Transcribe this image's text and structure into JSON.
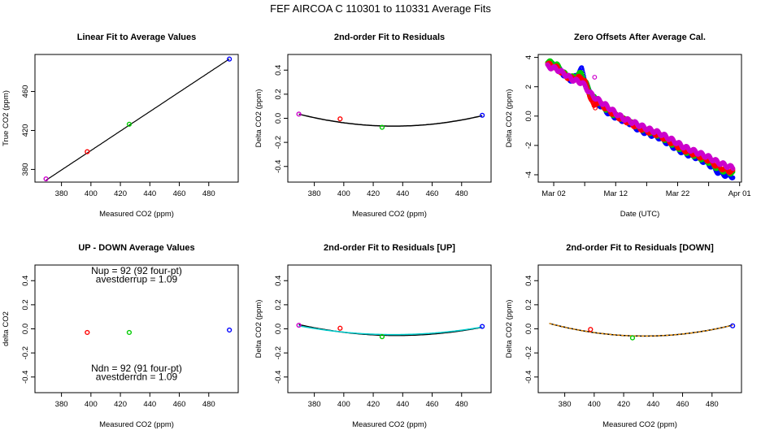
{
  "figure": {
    "title": "FEF   AIRCOA C   110301 to 110331   Average Fits"
  },
  "chart_data": [
    {
      "id": "p1",
      "type": "scatter",
      "title": "Linear Fit to Average Values",
      "xlabel": "Measured CO2 (ppm)",
      "ylabel": "True CO2 (ppm)",
      "xlim": [
        362,
        500
      ],
      "ylim": [
        367,
        498
      ],
      "xticks": [
        380,
        400,
        420,
        440,
        460,
        480
      ],
      "yticks": [
        380,
        420,
        460
      ],
      "points": [
        {
          "x": 369.5,
          "y": 370.3,
          "color": "#cc00cc"
        },
        {
          "x": 397.5,
          "y": 398.2,
          "color": "#ff0000"
        },
        {
          "x": 426.0,
          "y": 426.4,
          "color": "#00cc00"
        },
        {
          "x": 494.0,
          "y": 493.3,
          "color": "#0000ff"
        }
      ],
      "lines": [
        {
          "kind": "poly",
          "coef": [
            -0.6,
            1.0
          ],
          "xrange": [
            369.5,
            494
          ],
          "color": "#000000",
          "width": 1.2
        }
      ]
    },
    {
      "id": "p2",
      "type": "scatter",
      "title": "2nd-order Fit to Residuals",
      "xlabel": "Measured CO2 (ppm)",
      "ylabel": "Delta CO2 (ppm)",
      "xlim": [
        362,
        500
      ],
      "ylim": [
        -0.53,
        0.53
      ],
      "xticks": [
        380,
        400,
        420,
        440,
        460,
        480
      ],
      "yticks": [
        -0.4,
        -0.2,
        0.0,
        0.2,
        0.4
      ],
      "points": [
        {
          "x": 369.5,
          "y": 0.035,
          "color": "#cc00cc"
        },
        {
          "x": 397.5,
          "y": -0.005,
          "color": "#ff0000"
        },
        {
          "x": 426.0,
          "y": -0.075,
          "color": "#00cc00"
        },
        {
          "x": 494.0,
          "y": 0.025,
          "color": "#0000ff"
        }
      ],
      "lines": [
        {
          "kind": "parabola",
          "vertex_x": 434.0,
          "vertex_y": -0.065,
          "through_x": 369.5,
          "through_y": 0.035,
          "xrange": [
            369.5,
            494
          ],
          "color": "#000000",
          "width": 1.5
        }
      ]
    },
    {
      "id": "p3",
      "type": "scatter",
      "title": "Zero Offsets After Average Cal.",
      "xlabel": "Date (UTC)",
      "ylabel": "Delta CO2 (ppm)",
      "xlim": [
        -1.5,
        31.3
      ],
      "ylim": [
        -4.5,
        4.2
      ],
      "xticks": [
        1,
        6,
        11,
        16,
        21,
        26,
        31
      ],
      "xticklabels": [
        "Mar 02",
        "",
        "Mar 12",
        "",
        "Mar 22",
        "",
        "Apr 01"
      ],
      "yticks": [
        -4,
        -2,
        0,
        2,
        4
      ],
      "series": [
        {
          "name": "blue",
          "color": "#0000ff",
          "offset": -0.06,
          "points": [
            [
              0.0,
              3.7
            ],
            [
              1.5,
              3.45
            ],
            [
              3.0,
              2.7
            ],
            [
              4.0,
              2.5
            ],
            [
              5.0,
              3.05
            ],
            [
              5.5,
              3.25
            ],
            [
              6.0,
              2.6
            ],
            [
              7.0,
              1.4
            ],
            [
              8.0,
              1.0
            ],
            [
              10.0,
              0.2
            ],
            [
              11.0,
              0.0
            ],
            [
              12.0,
              -0.2
            ],
            [
              13.0,
              -0.35
            ],
            [
              14.5,
              -0.8
            ],
            [
              16.0,
              -1.1
            ],
            [
              18.0,
              -1.4
            ],
            [
              20.0,
              -1.95
            ],
            [
              22.0,
              -2.45
            ],
            [
              24.0,
              -2.75
            ],
            [
              26.0,
              -3.2
            ],
            [
              27.5,
              -3.75
            ],
            [
              29.0,
              -4.0
            ],
            [
              30.0,
              -4.05
            ]
          ]
        },
        {
          "name": "green",
          "color": "#00cc00",
          "offset": -0.02,
          "points": [
            [
              0.0,
              3.75
            ],
            [
              1.5,
              3.5
            ],
            [
              3.0,
              2.8
            ],
            [
              4.0,
              2.65
            ],
            [
              5.0,
              2.85
            ],
            [
              5.5,
              2.95
            ],
            [
              6.0,
              2.5
            ],
            [
              7.0,
              1.5
            ],
            [
              8.0,
              1.05
            ],
            [
              10.0,
              0.3
            ],
            [
              11.0,
              0.05
            ],
            [
              12.0,
              -0.15
            ],
            [
              13.0,
              -0.35
            ],
            [
              14.5,
              -0.7
            ],
            [
              16.0,
              -1.0
            ],
            [
              18.0,
              -1.3
            ],
            [
              20.0,
              -1.85
            ],
            [
              22.0,
              -2.35
            ],
            [
              24.0,
              -2.7
            ],
            [
              26.0,
              -3.1
            ],
            [
              27.5,
              -3.55
            ],
            [
              29.0,
              -3.8
            ],
            [
              30.0,
              -3.85
            ]
          ]
        },
        {
          "name": "red",
          "color": "#ff0000",
          "offset": 0.0,
          "points": [
            [
              0.0,
              3.55
            ],
            [
              1.5,
              3.3
            ],
            [
              3.0,
              2.7
            ],
            [
              4.0,
              2.55
            ],
            [
              5.0,
              2.6
            ],
            [
              5.5,
              2.65
            ],
            [
              6.0,
              2.4
            ],
            [
              7.0,
              1.2
            ],
            [
              7.5,
              0.6
            ],
            [
              8.0,
              1.0
            ],
            [
              10.0,
              0.35
            ],
            [
              11.0,
              0.05
            ],
            [
              12.0,
              -0.2
            ],
            [
              13.0,
              -0.4
            ],
            [
              14.5,
              -0.75
            ],
            [
              16.0,
              -1.0
            ],
            [
              18.0,
              -1.3
            ],
            [
              20.0,
              -1.8
            ],
            [
              22.0,
              -2.3
            ],
            [
              24.0,
              -2.65
            ],
            [
              26.0,
              -3.0
            ],
            [
              27.5,
              -3.45
            ],
            [
              29.0,
              -3.7
            ],
            [
              30.0,
              -3.8
            ]
          ]
        },
        {
          "name": "magenta",
          "color": "#cc00cc",
          "offset": 0.05,
          "points": [
            [
              0.0,
              3.35
            ],
            [
              1.5,
              3.15
            ],
            [
              3.0,
              2.75
            ],
            [
              4.0,
              2.45
            ],
            [
              5.0,
              2.3
            ],
            [
              5.5,
              2.25
            ],
            [
              6.0,
              2.0
            ],
            [
              7.0,
              1.45
            ],
            [
              8.0,
              1.1
            ],
            [
              10.0,
              0.5
            ],
            [
              11.0,
              0.15
            ],
            [
              12.0,
              -0.15
            ],
            [
              13.0,
              -0.35
            ],
            [
              14.5,
              -0.6
            ],
            [
              16.0,
              -0.9
            ],
            [
              18.0,
              -1.2
            ],
            [
              20.0,
              -1.65
            ],
            [
              22.0,
              -2.15
            ],
            [
              24.0,
              -2.5
            ],
            [
              26.0,
              -2.85
            ],
            [
              27.5,
              -3.2
            ],
            [
              29.0,
              -3.45
            ],
            [
              30.0,
              -3.6
            ]
          ]
        }
      ],
      "outliers": [
        {
          "x": 7.6,
          "y": 2.65,
          "color": "#cc00cc"
        },
        {
          "x": 7.7,
          "y": 0.55,
          "color": "#ff0000"
        }
      ]
    },
    {
      "id": "p4",
      "type": "scatter",
      "title": "UP - DOWN Average Values",
      "xlabel": "Measured CO2 (ppm)",
      "ylabel": "delta CO2",
      "xlim": [
        362,
        500
      ],
      "ylim": [
        -0.53,
        0.53
      ],
      "xticks": [
        380,
        400,
        420,
        440,
        460,
        480
      ],
      "yticks": [
        -0.4,
        -0.2,
        0.0,
        0.2,
        0.4
      ],
      "points": [
        {
          "x": 397.5,
          "y": -0.03,
          "color": "#ff0000"
        },
        {
          "x": 426.0,
          "y": -0.03,
          "color": "#00cc00"
        },
        {
          "x": 494.0,
          "y": -0.01,
          "color": "#0000ff"
        }
      ],
      "annotations": [
        {
          "text": "Nup = 92 (92 four-pt)",
          "x": 431,
          "y": 0.455
        },
        {
          "text": "avestderrup =  1.09",
          "x": 431,
          "y": 0.385
        },
        {
          "text": "Ndn = 92 (91 four-pt)",
          "x": 431,
          "y": -0.355
        },
        {
          "text": "avestderrdn =  1.09",
          "x": 431,
          "y": -0.425
        }
      ]
    },
    {
      "id": "p5",
      "type": "scatter",
      "title": "2nd-order Fit to Residuals [UP]",
      "xlabel": "Measured CO2 (ppm)",
      "ylabel": "Delta CO2 (ppm)",
      "xlim": [
        362,
        500
      ],
      "ylim": [
        -0.53,
        0.53
      ],
      "xticks": [
        380,
        400,
        420,
        440,
        460,
        480
      ],
      "yticks": [
        -0.4,
        -0.2,
        0.0,
        0.2,
        0.4
      ],
      "points": [
        {
          "x": 369.5,
          "y": 0.03,
          "color": "#cc00cc"
        },
        {
          "x": 397.5,
          "y": 0.005,
          "color": "#ff0000"
        },
        {
          "x": 426.0,
          "y": -0.065,
          "color": "#00cc00"
        },
        {
          "x": 494.0,
          "y": 0.02,
          "color": "#0000ff"
        }
      ],
      "lines": [
        {
          "kind": "parabola",
          "vertex_x": 436.0,
          "vertex_y": -0.055,
          "through_x": 369.5,
          "through_y": 0.035,
          "xrange": [
            369.5,
            494
          ],
          "color": "#000000",
          "width": 1.5
        },
        {
          "kind": "parabola",
          "vertex_x": 434.0,
          "vertex_y": -0.048,
          "through_x": 369.5,
          "through_y": 0.025,
          "xrange": [
            369.5,
            494
          ],
          "color": "#00cccc",
          "width": 1.5
        }
      ]
    },
    {
      "id": "p6",
      "type": "scatter",
      "title": "2nd-order Fit to Residuals [DOWN]",
      "xlabel": "Measured CO2 (ppm)",
      "ylabel": "Delta CO2 (ppm)",
      "xlim": [
        362,
        500
      ],
      "ylim": [
        -0.53,
        0.53
      ],
      "xticks": [
        380,
        400,
        420,
        440,
        460,
        480
      ],
      "yticks": [
        -0.4,
        -0.2,
        0.0,
        0.2,
        0.4
      ],
      "points": [
        {
          "x": 397.5,
          "y": -0.005,
          "color": "#ff0000"
        },
        {
          "x": 426.0,
          "y": -0.075,
          "color": "#00cc00"
        },
        {
          "x": 494.0,
          "y": 0.025,
          "color": "#0000ff"
        }
      ],
      "lines": [
        {
          "kind": "parabola",
          "vertex_x": 434.0,
          "vertex_y": -0.06,
          "through_x": 369.5,
          "through_y": 0.045,
          "xrange": [
            369.5,
            494
          ],
          "color": "#000000",
          "width": 1.5
        },
        {
          "kind": "parabola",
          "vertex_x": 434.0,
          "vertex_y": -0.06,
          "through_x": 369.5,
          "through_y": 0.045,
          "xrange": [
            369.5,
            494
          ],
          "color": "#ff9900",
          "width": 1.2,
          "dash": true
        }
      ]
    }
  ]
}
